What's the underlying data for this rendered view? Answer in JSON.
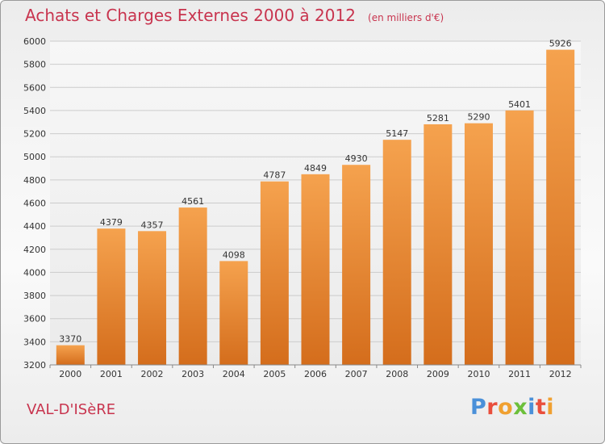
{
  "title": "Achats et Charges Externes 2000 à 2012",
  "subtitle": "(en milliers d'€)",
  "location": "VAL-D'ISèRE",
  "logo": {
    "text": "Proxiti",
    "letters": [
      {
        "char": "P",
        "color": "#4a90d9"
      },
      {
        "char": "r",
        "color": "#e94e3c"
      },
      {
        "char": "o",
        "color": "#f0a030"
      },
      {
        "char": "x",
        "color": "#6cbf3a"
      },
      {
        "char": "i",
        "color": "#4a90d9"
      },
      {
        "char": "t",
        "color": "#e94e3c"
      },
      {
        "char": "i",
        "color": "#f0a030"
      }
    ]
  },
  "colors": {
    "bar_top": "#f5a24e",
    "bar_bottom": "#d46d1c",
    "text_accent": "#c8344e",
    "grid": "#cccccc"
  },
  "chart_data": {
    "type": "bar",
    "categories": [
      "2000",
      "2001",
      "2002",
      "2003",
      "2004",
      "2005",
      "2006",
      "2007",
      "2008",
      "2009",
      "2010",
      "2011",
      "2012"
    ],
    "values": [
      3370,
      4379,
      4357,
      4561,
      4098,
      4787,
      4849,
      4930,
      5147,
      5281,
      5290,
      5401,
      5926
    ],
    "title": "Achats et Charges Externes 2000 à 2012",
    "ylim": [
      3200,
      6000
    ],
    "yticks": [
      3200,
      3400,
      3600,
      3800,
      4000,
      4200,
      4400,
      4600,
      4800,
      5000,
      5200,
      5400,
      5600,
      5800,
      6000
    ],
    "grid": true,
    "data_labels": true
  }
}
